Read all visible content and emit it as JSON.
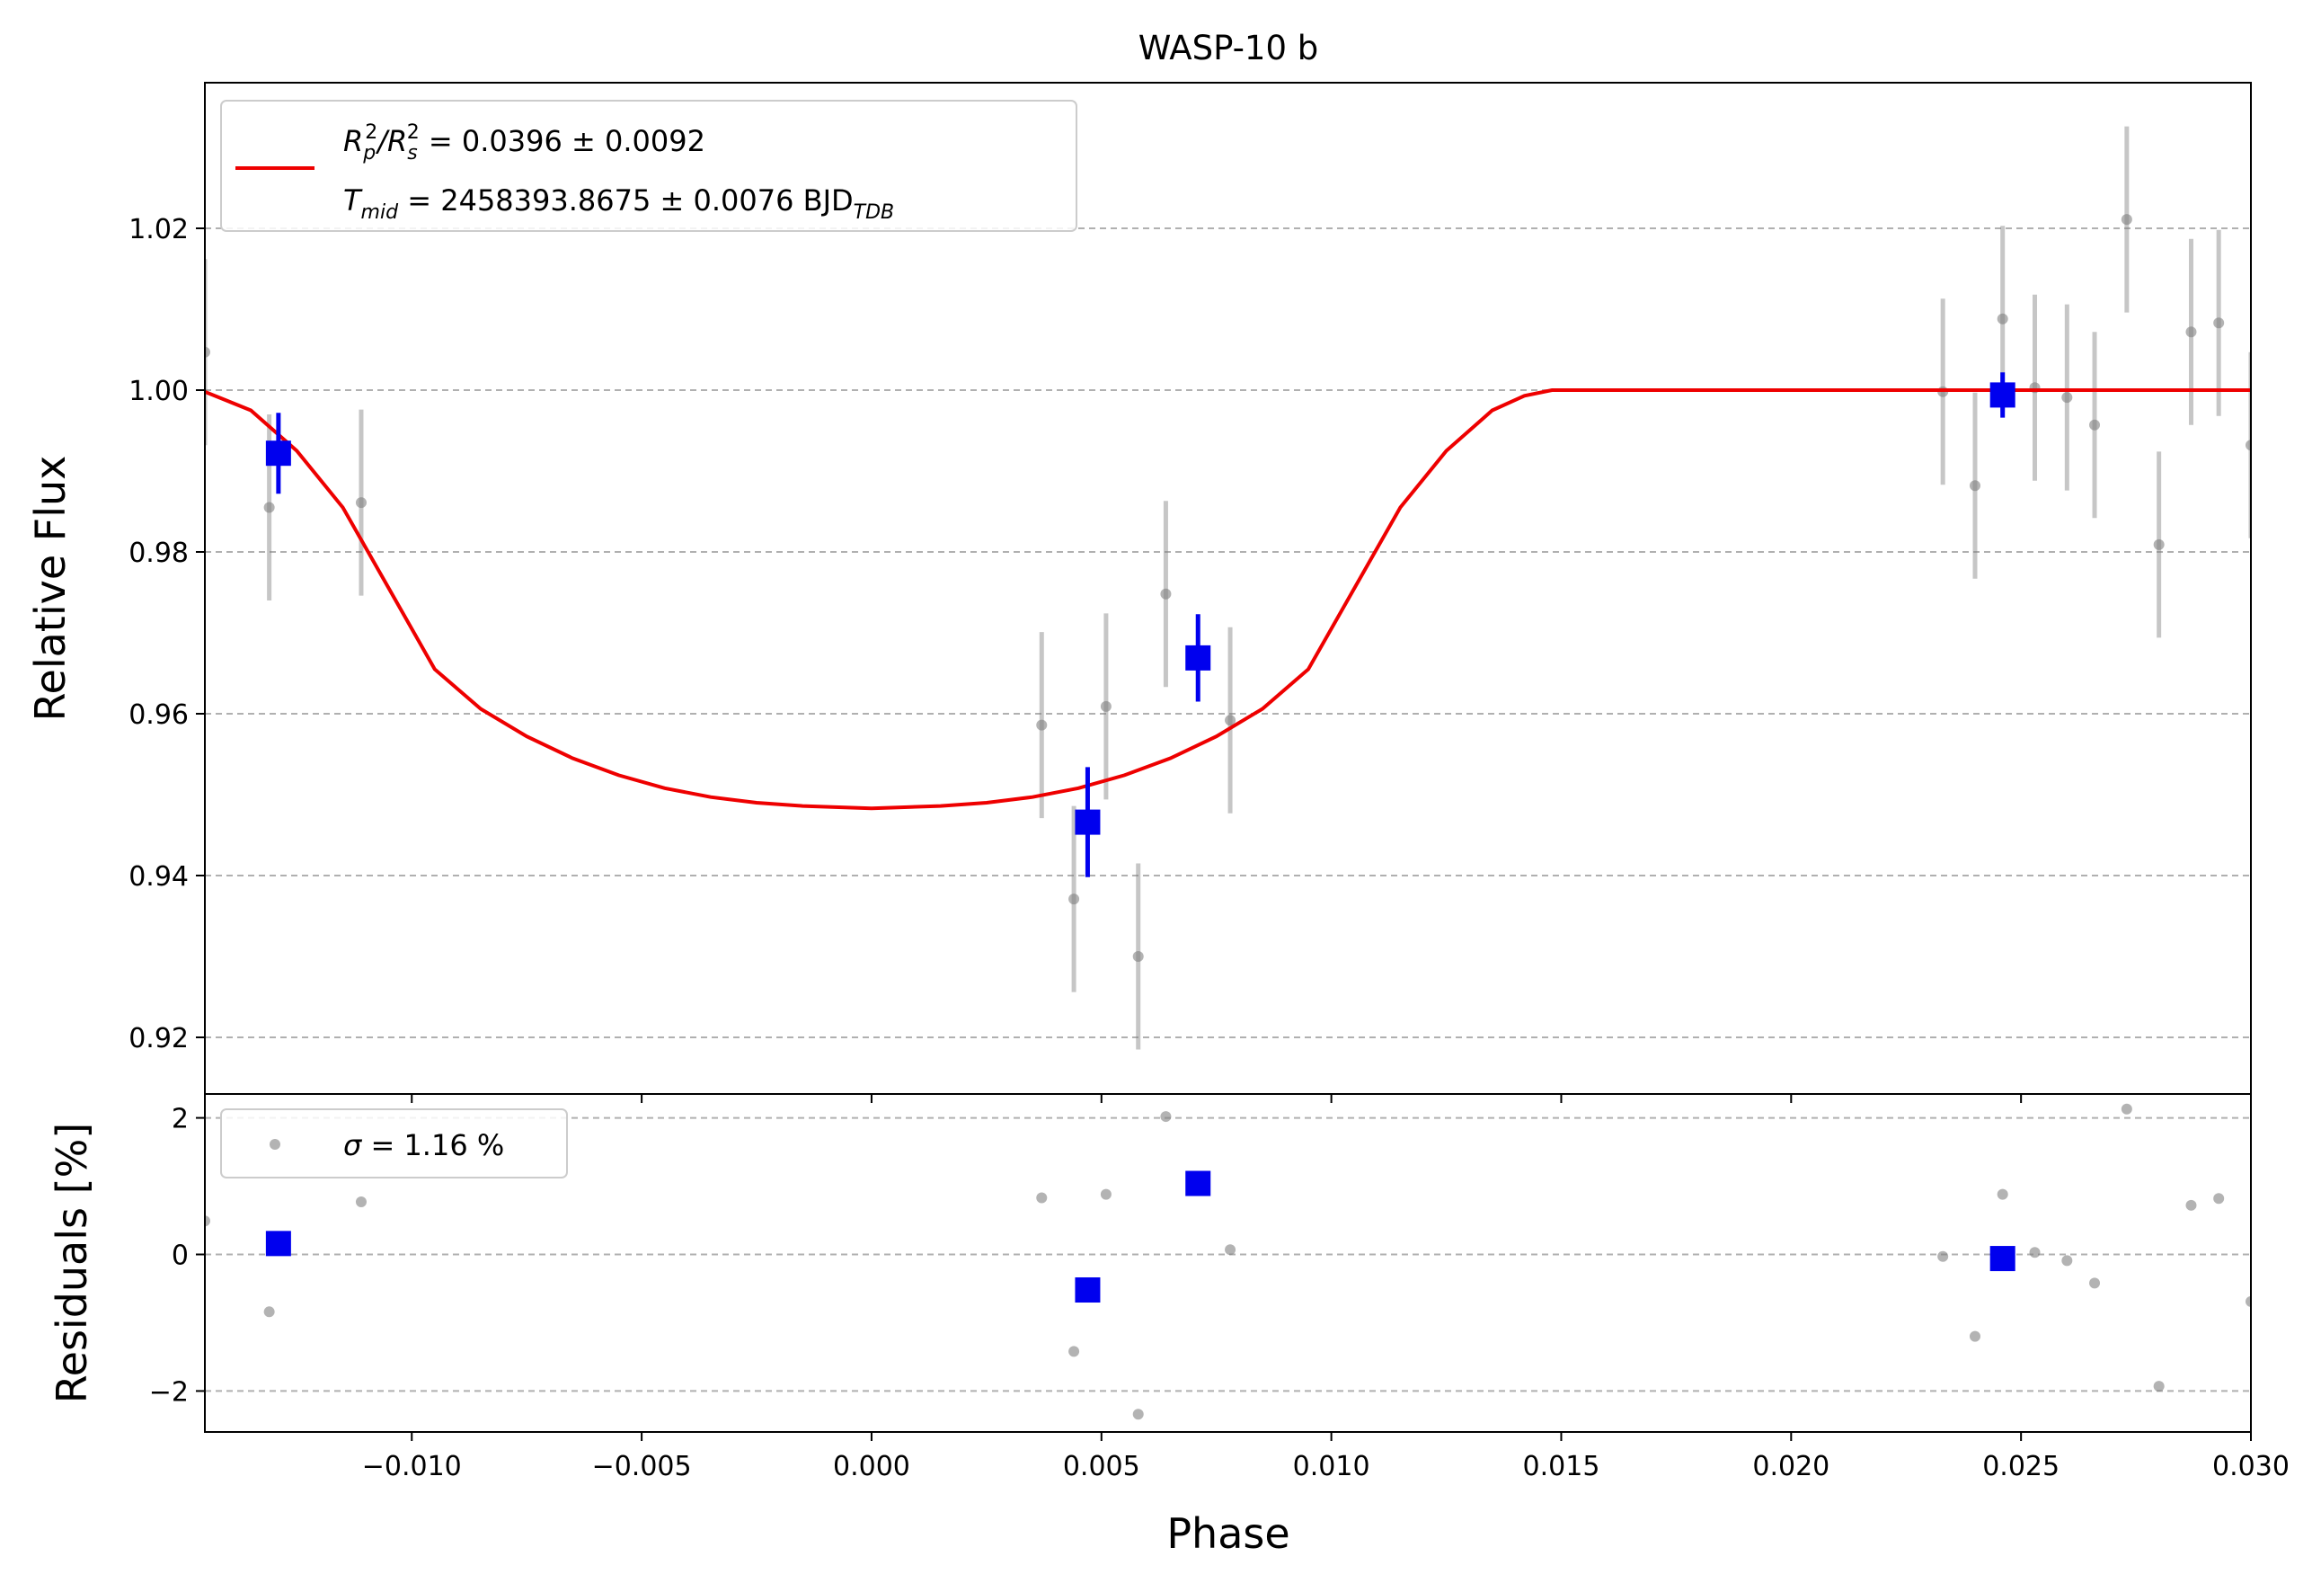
{
  "chart_data": {
    "type": "scatter",
    "title": "WASP-10 b",
    "xlabel": "Phase",
    "xlim": [
      -0.0145,
      0.03
    ],
    "x_ticks": [
      -0.01,
      -0.005,
      0.0,
      0.005,
      0.01,
      0.015,
      0.02,
      0.025,
      0.03
    ],
    "x_tick_labels": [
      "−0.010",
      "−0.005",
      "0.000",
      "0.005",
      "0.010",
      "0.015",
      "0.020",
      "0.025",
      "0.030"
    ],
    "panels": {
      "flux": {
        "ylabel": "Relative Flux",
        "ylim": [
          0.913,
          1.038
        ],
        "y_ticks": [
          0.92,
          0.94,
          0.96,
          0.98,
          1.0,
          1.02
        ],
        "y_tick_labels": [
          "0.92",
          "0.94",
          "0.96",
          "0.98",
          "1.00",
          "1.02"
        ],
        "grid": "horizontal dashed",
        "legend": {
          "placement": "top-left",
          "line1_parts": [
            {
              "t": "R",
              "s": "i"
            },
            {
              "t": "p",
              "s": "sub"
            },
            {
              "t": "2",
              "s": "sup"
            },
            {
              "t": "/",
              "s": "i"
            },
            {
              "t": "R",
              "s": "i"
            },
            {
              "t": "s",
              "s": "sub"
            },
            {
              "t": "2",
              "s": "sup"
            },
            {
              "t": " = 0.0396 ± 0.0092",
              "s": "n"
            }
          ],
          "line2_parts": [
            {
              "t": "T",
              "s": "i"
            },
            {
              "t": "mid",
              "s": "sub"
            },
            {
              "t": " = 2458393.8675 ± 0.0076 BJD",
              "s": "n"
            },
            {
              "t": "TDB",
              "s": "sub"
            }
          ]
        },
        "model_color": "#ee0000",
        "model": {
          "x": [
            -0.0145,
            -0.0135,
            -0.0125,
            -0.0115,
            -0.0105,
            -0.0095,
            -0.0085,
            -0.0075,
            -0.0065,
            -0.0055,
            -0.0045,
            -0.0035,
            -0.0025,
            -0.0015,
            -0.0005,
            0.0,
            0.0005,
            0.0015,
            0.0025,
            0.0035,
            0.0045,
            0.0055,
            0.0065,
            0.0075,
            0.0085,
            0.0095,
            0.0105,
            0.0115,
            0.0125,
            0.0135,
            0.0142,
            0.0148,
            0.02,
            0.025,
            0.03
          ],
          "y": [
            0.9998,
            0.9975,
            0.9925,
            0.9855,
            0.9755,
            0.9655,
            0.9606,
            0.9572,
            0.9545,
            0.9524,
            0.9508,
            0.9497,
            0.949,
            0.9486,
            0.9484,
            0.9483,
            0.9484,
            0.9486,
            0.949,
            0.9497,
            0.9508,
            0.9524,
            0.9545,
            0.9572,
            0.9606,
            0.9655,
            0.9755,
            0.9855,
            0.9925,
            0.9975,
            0.9993,
            1.0,
            1.0,
            1.0,
            1.0
          ]
        },
        "raw_color": "#808080",
        "raw": [
          {
            "x": -0.0145,
            "y": 1.0047,
            "e": 0.0115
          },
          {
            "x": -0.0131,
            "y": 0.9855,
            "e": 0.0115
          },
          {
            "x": -0.0111,
            "y": 0.9861,
            "e": 0.0115
          },
          {
            "x": 0.0037,
            "y": 0.9586,
            "e": 0.0115
          },
          {
            "x": 0.0044,
            "y": 0.9371,
            "e": 0.0115
          },
          {
            "x": 0.0051,
            "y": 0.9609,
            "e": 0.0115
          },
          {
            "x": 0.0058,
            "y": 0.93,
            "e": 0.0115
          },
          {
            "x": 0.0064,
            "y": 0.9748,
            "e": 0.0115
          },
          {
            "x": 0.0078,
            "y": 0.9592,
            "e": 0.0115
          },
          {
            "x": 0.0233,
            "y": 0.9998,
            "e": 0.0115
          },
          {
            "x": 0.024,
            "y": 0.9882,
            "e": 0.0115
          },
          {
            "x": 0.0246,
            "y": 1.0088,
            "e": 0.0115
          },
          {
            "x": 0.0253,
            "y": 1.0003,
            "e": 0.0115
          },
          {
            "x": 0.026,
            "y": 0.9991,
            "e": 0.0115
          },
          {
            "x": 0.0266,
            "y": 0.9957,
            "e": 0.0115
          },
          {
            "x": 0.0273,
            "y": 1.0211,
            "e": 0.0115
          },
          {
            "x": 0.028,
            "y": 0.9809,
            "e": 0.0115
          },
          {
            "x": 0.0287,
            "y": 1.0072,
            "e": 0.0115
          },
          {
            "x": 0.0293,
            "y": 1.0083,
            "e": 0.0115
          },
          {
            "x": 0.03,
            "y": 0.9932,
            "e": 0.0115
          }
        ],
        "binned_color": "#0000ee",
        "binned": [
          {
            "x": -0.0129,
            "y": 0.9922,
            "e": 0.005
          },
          {
            "x": 0.0047,
            "y": 0.9466,
            "e": 0.0068
          },
          {
            "x": 0.0071,
            "y": 0.9669,
            "e": 0.0054
          },
          {
            "x": 0.0246,
            "y": 0.9994,
            "e": 0.0028
          }
        ]
      },
      "residuals": {
        "ylabel": "Residuals [%]",
        "ylim": [
          -2.6,
          2.35
        ],
        "y_ticks": [
          -2,
          0,
          2
        ],
        "y_tick_labels": [
          "−2",
          "0",
          "2"
        ],
        "grid": "horizontal dashed",
        "legend": {
          "placement": "top-left",
          "parts": [
            {
              "t": "σ",
              "s": "i"
            },
            {
              "t": " = 1.16 %",
              "s": "n"
            }
          ]
        },
        "raw": [
          {
            "x": -0.0145,
            "y": 0.49
          },
          {
            "x": -0.0131,
            "y": -0.84
          },
          {
            "x": -0.0111,
            "y": 0.77
          },
          {
            "x": 0.0037,
            "y": 0.83
          },
          {
            "x": 0.0044,
            "y": -1.42
          },
          {
            "x": 0.0051,
            "y": 0.88
          },
          {
            "x": 0.0058,
            "y": -2.34
          },
          {
            "x": 0.0064,
            "y": 2.02
          },
          {
            "x": 0.0078,
            "y": 0.07
          },
          {
            "x": 0.0233,
            "y": -0.03
          },
          {
            "x": 0.024,
            "y": -1.2
          },
          {
            "x": 0.0246,
            "y": 0.88
          },
          {
            "x": 0.0253,
            "y": 0.03
          },
          {
            "x": 0.026,
            "y": -0.09
          },
          {
            "x": 0.0266,
            "y": -0.42
          },
          {
            "x": 0.0273,
            "y": 2.13
          },
          {
            "x": 0.028,
            "y": -1.93
          },
          {
            "x": 0.0287,
            "y": 0.72
          },
          {
            "x": 0.0293,
            "y": 0.82
          },
          {
            "x": 0.03,
            "y": -0.69
          }
        ],
        "binned": [
          {
            "x": -0.0129,
            "y": 0.16
          },
          {
            "x": 0.0047,
            "y": -0.52
          },
          {
            "x": 0.0071,
            "y": 1.04
          },
          {
            "x": 0.0246,
            "y": -0.06
          }
        ]
      }
    }
  }
}
